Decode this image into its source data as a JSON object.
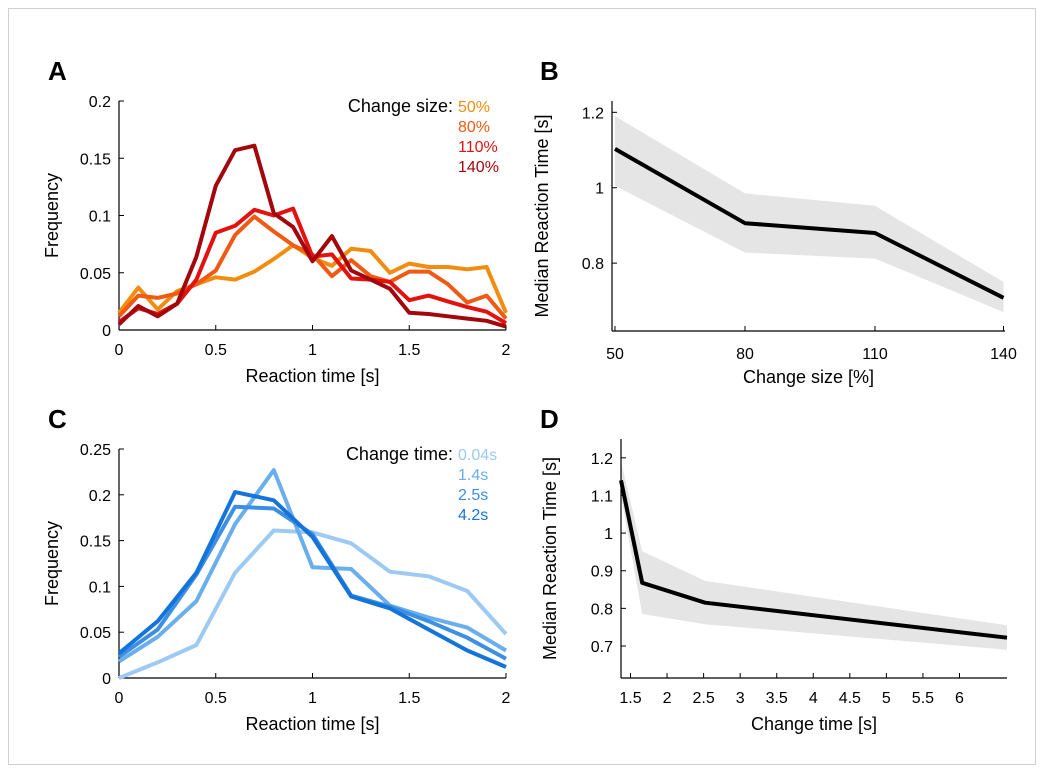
{
  "chart_data": [
    {
      "panel": "A",
      "type": "line",
      "xlabel": "Reaction time [s]",
      "ylabel": "Frequency",
      "xlim": [
        0,
        2
      ],
      "ylim": [
        0,
        0.2
      ],
      "xticks": [
        0,
        0.5,
        1,
        1.5,
        2
      ],
      "xtick_labels": [
        "0",
        "0.5",
        "1",
        "1.5",
        "2"
      ],
      "yticks": [
        0,
        0.05,
        0.1,
        0.15,
        0.2
      ],
      "ytick_labels": [
        "0",
        "0.05",
        "0.1",
        "0.15",
        "0.2"
      ],
      "legend_title": "Change size:",
      "legend_placement": "top-right",
      "grid": false,
      "x": [
        0,
        0.1,
        0.2,
        0.3,
        0.4,
        0.5,
        0.6,
        0.7,
        0.8,
        0.9,
        1.0,
        1.1,
        1.2,
        1.3,
        1.4,
        1.5,
        1.6,
        1.7,
        1.8,
        1.9,
        2.0
      ],
      "series": [
        {
          "name": "50%",
          "color": "#f28c0f",
          "values": [
            0.015,
            0.037,
            0.018,
            0.034,
            0.04,
            0.046,
            0.044,
            0.051,
            0.062,
            0.074,
            0.063,
            0.056,
            0.071,
            0.069,
            0.05,
            0.058,
            0.055,
            0.055,
            0.053,
            0.055,
            0.015
          ]
        },
        {
          "name": "80%",
          "color": "#ef5a14",
          "values": [
            0.012,
            0.03,
            0.028,
            0.032,
            0.04,
            0.052,
            0.083,
            0.099,
            0.086,
            0.074,
            0.066,
            0.047,
            0.061,
            0.047,
            0.042,
            0.051,
            0.051,
            0.04,
            0.024,
            0.03,
            0.01
          ]
        },
        {
          "name": "110%",
          "color": "#e3120f",
          "values": [
            0.007,
            0.019,
            0.014,
            0.023,
            0.044,
            0.085,
            0.091,
            0.105,
            0.1,
            0.106,
            0.064,
            0.066,
            0.045,
            0.044,
            0.042,
            0.026,
            0.03,
            0.025,
            0.02,
            0.016,
            0.006
          ]
        },
        {
          "name": "140%",
          "color": "#a3070c",
          "values": [
            0.005,
            0.021,
            0.012,
            0.023,
            0.064,
            0.126,
            0.157,
            0.161,
            0.102,
            0.09,
            0.06,
            0.082,
            0.052,
            0.044,
            0.036,
            0.015,
            0.014,
            0.012,
            0.01,
            0.008,
            0.003
          ]
        }
      ]
    },
    {
      "panel": "B",
      "type": "area",
      "xlabel": "Change size [%]",
      "ylabel": "Median Reaction Time [s]",
      "ylim": [
        0.62,
        1.23
      ],
      "categories": [
        "50",
        "80",
        "110",
        "140"
      ],
      "yticks": [
        0.8,
        1,
        1.2
      ],
      "ytick_labels": [
        "0.8",
        "1",
        "1.2"
      ],
      "grid": false,
      "series": [
        {
          "name": "",
          "color": "#000000",
          "values": [
            1.103,
            0.906,
            0.88,
            0.708
          ],
          "lower": [
            1.005,
            0.828,
            0.812,
            0.67
          ],
          "upper": [
            1.19,
            0.985,
            0.952,
            0.75
          ]
        }
      ],
      "band_color": "#e5e5e5"
    },
    {
      "panel": "C",
      "type": "line",
      "xlabel": "Reaction time [s]",
      "ylabel": "Frequency",
      "xlim": [
        0,
        2
      ],
      "ylim": [
        0,
        0.25
      ],
      "xticks": [
        0,
        0.5,
        1,
        1.5,
        2
      ],
      "xtick_labels": [
        "0",
        "0.5",
        "1",
        "1.5",
        "2"
      ],
      "yticks": [
        0,
        0.05,
        0.1,
        0.15,
        0.2,
        0.25
      ],
      "ytick_labels": [
        "0",
        "0.05",
        "0.1",
        "0.15",
        "0.2",
        "0.25"
      ],
      "legend_title": "Change time:",
      "legend_placement": "top-right",
      "grid": false,
      "x": [
        0,
        0.2,
        0.4,
        0.6,
        0.8,
        1.0,
        1.2,
        1.4,
        1.6,
        1.8,
        2.0
      ],
      "series": [
        {
          "name": "0.04s",
          "color": "#9ccaf2",
          "values": [
            0.0,
            0.017,
            0.036,
            0.115,
            0.161,
            0.159,
            0.147,
            0.116,
            0.111,
            0.095,
            0.048
          ]
        },
        {
          "name": "1.4s",
          "color": "#6aaeeb",
          "values": [
            0.018,
            0.045,
            0.084,
            0.168,
            0.227,
            0.121,
            0.119,
            0.079,
            0.066,
            0.055,
            0.03
          ]
        },
        {
          "name": "2.5s",
          "color": "#3d8fe3",
          "values": [
            0.023,
            0.053,
            0.113,
            0.187,
            0.185,
            0.157,
            0.09,
            0.078,
            0.062,
            0.044,
            0.021
          ]
        },
        {
          "name": "4.2s",
          "color": "#1574da",
          "values": [
            0.027,
            0.062,
            0.115,
            0.203,
            0.194,
            0.154,
            0.089,
            0.076,
            0.053,
            0.03,
            0.012
          ]
        }
      ]
    },
    {
      "panel": "D",
      "type": "area",
      "xlabel": "Change time [s]",
      "ylabel": "Median Reaction Time [s]",
      "xlim": [
        1.37,
        6.65
      ],
      "ylim": [
        0.615,
        1.25
      ],
      "xticks": [
        1.5,
        2,
        2.5,
        3,
        3.5,
        4,
        4.5,
        5,
        5.5,
        6
      ],
      "xtick_labels": [
        "1.5",
        "2",
        "2.5",
        "3",
        "3.5",
        "4",
        "4.5",
        "5",
        "5.5",
        "6"
      ],
      "yticks": [
        0.7,
        0.8,
        0.9,
        1,
        1.1,
        1.2
      ],
      "ytick_labels": [
        "0.7",
        "0.8",
        "0.9",
        "1",
        "1.1",
        "1.2"
      ],
      "grid": false,
      "series": [
        {
          "name": "",
          "color": "#000000",
          "x": [
            1.37,
            1.66,
            2.52,
            6.65
          ],
          "values": [
            1.14,
            0.868,
            0.815,
            0.722
          ],
          "lower": [
            1.1,
            0.785,
            0.758,
            0.69
          ],
          "upper": [
            1.19,
            0.952,
            0.873,
            0.755
          ]
        }
      ],
      "band_color": "#e5e5e5"
    }
  ]
}
